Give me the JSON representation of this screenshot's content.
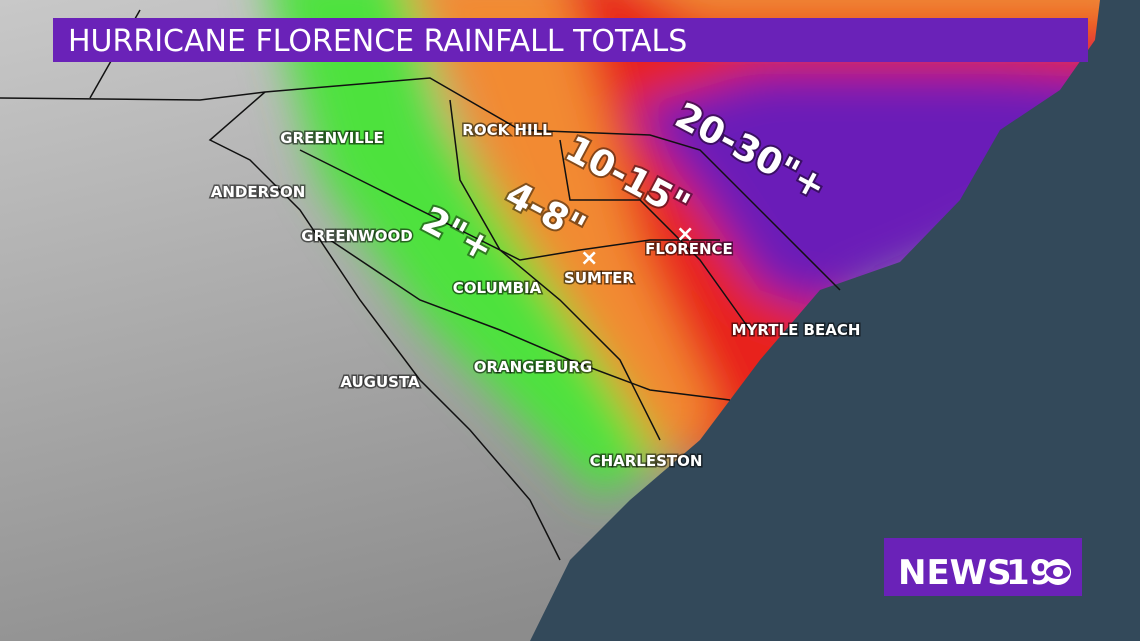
{
  "header": {
    "title": "HURRICANE FLORENCE RAINFALL TOTALS"
  },
  "rainfall_labels": [
    {
      "label": "2\"+"
    },
    {
      "label": "4-8\""
    },
    {
      "label": "10-15\""
    },
    {
      "label": "20-30\"+"
    }
  ],
  "cities": [
    {
      "label": "GREENVILLE"
    },
    {
      "label": "ANDERSON"
    },
    {
      "label": "GREENWOOD"
    },
    {
      "label": "ROCK HILL"
    },
    {
      "label": "COLUMBIA"
    },
    {
      "label": "SUMTER"
    },
    {
      "label": "FLORENCE"
    },
    {
      "label": "MYRTLE BEACH"
    },
    {
      "label": "ORANGEBURG"
    },
    {
      "label": "AUGUSTA"
    },
    {
      "label": "CHARLESTON"
    }
  ],
  "logo": {
    "name": "NEWS",
    "number": "19"
  }
}
